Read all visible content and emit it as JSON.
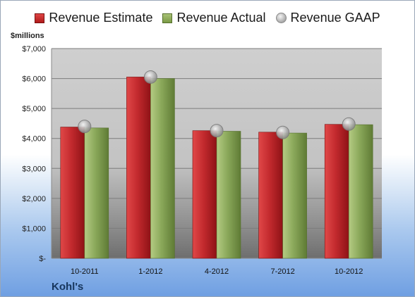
{
  "legend": {
    "estimate": "Revenue Estimate",
    "actual": "Revenue Actual",
    "gaap": "Revenue GAAP"
  },
  "units_label": "$millions",
  "company": "Kohl's",
  "colors": {
    "estimate": "#c0262b",
    "actual": "#8aa85a",
    "gaap": "#b0b0b0",
    "plot_bg": "#c8c8c8"
  },
  "chart_data": {
    "type": "bar",
    "categories": [
      "10-2011",
      "1-2012",
      "4-2012",
      "7-2012",
      "10-2012"
    ],
    "series": [
      {
        "name": "Revenue Estimate",
        "values": [
          4380,
          6050,
          4260,
          4210,
          4470
        ]
      },
      {
        "name": "Revenue Actual",
        "values": [
          4350,
          6000,
          4240,
          4180,
          4460
        ]
      },
      {
        "name": "Revenue GAAP",
        "values": [
          4400,
          6050,
          4260,
          4200,
          4480
        ],
        "marker": "circle"
      }
    ],
    "y_ticks": [
      "$-",
      "$1,000",
      "$2,000",
      "$3,000",
      "$4,000",
      "$5,000",
      "$6,000",
      "$7,000"
    ],
    "ylim": [
      0,
      7000
    ],
    "grid": true,
    "legend_position": "top"
  }
}
